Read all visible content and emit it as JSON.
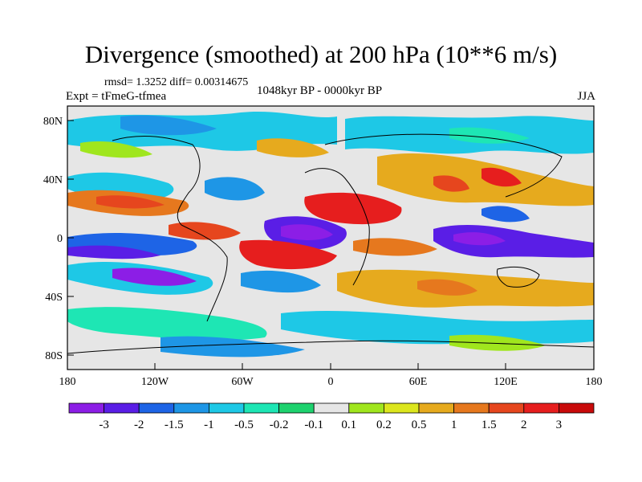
{
  "header": {
    "title": "Divergence (smoothed) at 200 hPa (10**6 m/s)",
    "stats": "rmsd= 1.3252 diff= 0.00314675",
    "experiment": "Expt = tFmeG-tfmea",
    "period": "1048kyr BP - 0000kyr BP",
    "season": "JJA"
  },
  "map": {
    "lat_ticks": [
      "80N",
      "40N",
      "0",
      "40S",
      "80S"
    ],
    "lon_ticks": [
      "180",
      "120W",
      "60W",
      "0",
      "60E",
      "120E",
      "180"
    ]
  },
  "colorbar": {
    "labels": [
      "-3",
      "-2",
      "-1.5",
      "-1",
      "-0.5",
      "-0.2",
      "-0.1",
      "0.1",
      "0.2",
      "0.5",
      "1",
      "1.5",
      "2",
      "3"
    ],
    "colors": [
      "#8c1ee6",
      "#5a1ee6",
      "#1e64e6",
      "#1e96e6",
      "#1ec8e6",
      "#1ee6b4",
      "#1ed26e",
      "#e6e6e6",
      "#a0e61e",
      "#dce61e",
      "#e6aa1e",
      "#e6781e",
      "#e6461e",
      "#e61e1e",
      "#c80a0a"
    ]
  },
  "colors": {
    "background": "#ffffff",
    "neutral": "#e6e6e6",
    "coast": "#000000"
  }
}
